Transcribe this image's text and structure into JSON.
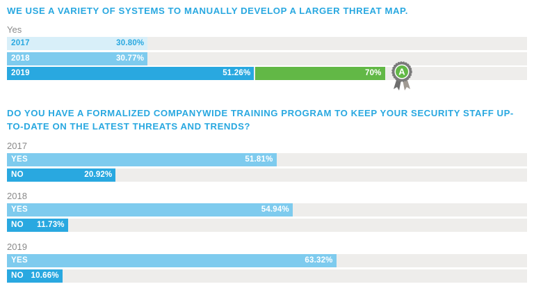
{
  "colors": {
    "heading": "#29a8e0",
    "light": "#d8eff9",
    "mid": "#7ecbee",
    "dark": "#29a8e0",
    "green": "#62b846",
    "track": "#eeedeb",
    "badge_ring": "#7a7a7a"
  },
  "chart_data": [
    {
      "type": "bar",
      "orientation": "horizontal",
      "title": "WE USE A VARIETY OF SYSTEMS TO MANUALLY DEVELOP A LARGER THREAT MAP.",
      "subtitle": "Yes",
      "xlim": [
        0,
        100
      ],
      "unit": "%",
      "categories": [
        "2017",
        "2018",
        "2019"
      ],
      "values": [
        30.8,
        30.77,
        51.26
      ],
      "value_labels": [
        "30.80%",
        "30.77%",
        "51.26%"
      ],
      "benchmark": {
        "category": "2019",
        "value": 70,
        "label": "70%",
        "badge_letter": "A",
        "badge_icon": "award-ribbon-icon"
      }
    },
    {
      "type": "bar",
      "orientation": "horizontal",
      "title": "DO YOU HAVE A FORMALIZED COMPANYWIDE TRAINING PROGRAM TO KEEP YOUR SECURITY STAFF UP-TO-DATE ON THE LATEST THREATS AND TRENDS?",
      "title_lines": [
        "DO YOU HAVE A FORMALIZED COMPANYWIDE TRAINING PROGRAM TO KEEP YOUR SECURITY STAFF UP-",
        "TO-DATE ON THE LATEST THREATS AND TRENDS?"
      ],
      "xlim": [
        0,
        100
      ],
      "unit": "%",
      "groups": [
        {
          "year": "2017",
          "bars": [
            {
              "label": "YES",
              "value": 51.81,
              "value_label": "51.81%"
            },
            {
              "label": "NO",
              "value": 20.92,
              "value_label": "20.92%"
            }
          ]
        },
        {
          "year": "2018",
          "bars": [
            {
              "label": "YES",
              "value": 54.94,
              "value_label": "54.94%"
            },
            {
              "label": "NO",
              "value": 11.73,
              "value_label": "11.73%"
            }
          ]
        },
        {
          "year": "2019",
          "bars": [
            {
              "label": "YES",
              "value": 63.32,
              "value_label": "63.32%"
            },
            {
              "label": "NO",
              "value": 10.66,
              "value_label": "10.66%"
            }
          ]
        }
      ]
    }
  ]
}
